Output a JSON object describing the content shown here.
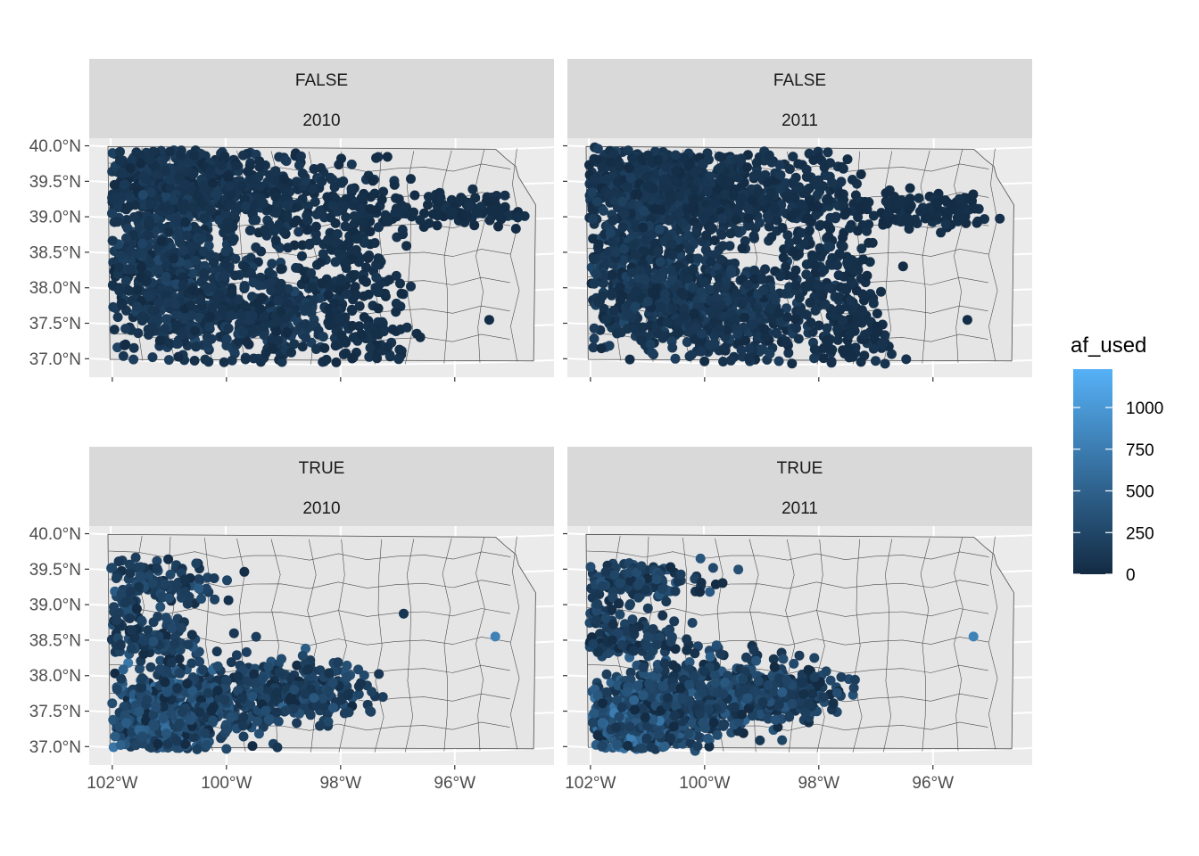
{
  "chart_data": {
    "type": "scatter",
    "description_kind": "faceted map scatter",
    "facet_rows": [
      "FALSE",
      "TRUE"
    ],
    "facet_cols": [
      "2010",
      "2011"
    ],
    "x_ticks": [
      "102°W",
      "100°W",
      "98°W",
      "96°W"
    ],
    "x_tick_values": [
      -102,
      -100,
      -98,
      -96
    ],
    "y_ticks": [
      "37.0°N",
      "37.5°N",
      "38.0°N",
      "38.5°N",
      "39.0°N",
      "39.5°N",
      "40.0°N"
    ],
    "y_tick_values": [
      37.0,
      37.5,
      38.0,
      38.5,
      39.0,
      39.5,
      40.0
    ],
    "xlim": [
      -102.3,
      -94.3
    ],
    "ylim": [
      36.8,
      40.15
    ],
    "legend": {
      "title": "af_used",
      "labels": [
        "1000",
        "750",
        "500",
        "250",
        "0"
      ],
      "values": [
        1000,
        750,
        500,
        250,
        0
      ],
      "range": [
        0,
        1230
      ],
      "low_color": "#132B43",
      "high_color": "#56B1F7",
      "placement": "right"
    },
    "highlighted_points": [
      {
        "panel": "TRUE 2010",
        "lon": -95.3,
        "lat": 38.6,
        "af_used": 800
      },
      {
        "panel": "TRUE 2011",
        "lon": -95.3,
        "lat": 38.6,
        "af_used": 800
      },
      {
        "panel": "TRUE 2010",
        "lon": -96.9,
        "lat": 38.95,
        "af_used": 100
      },
      {
        "panel": "FALSE 2010",
        "lon": -95.4,
        "lat": 37.6,
        "af_used": 30
      },
      {
        "panel": "FALSE 2011",
        "lon": -95.4,
        "lat": 37.6,
        "af_used": 30
      }
    ]
  },
  "colors": {
    "panel_bg": "#EBEBEB",
    "grid": "#FFFFFF",
    "strip_bg": "#D9D9D9",
    "state_fill": "#E5E5E5",
    "border": "#4D4D4D"
  }
}
